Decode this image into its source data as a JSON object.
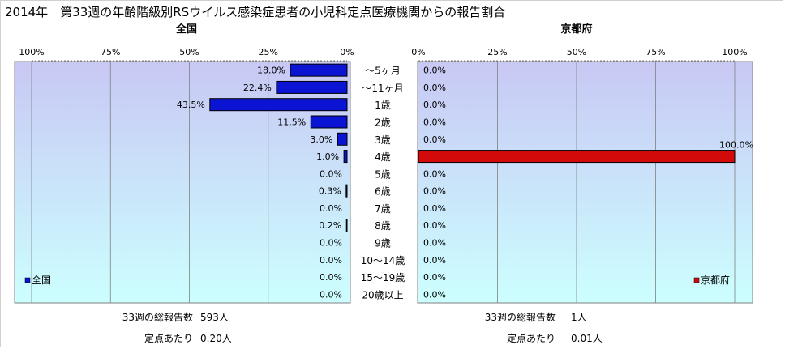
{
  "title": "2014年　第33週の年齢階級別RSウイルス感染症患者の小児科定点医療機関からの報告割合",
  "colors": {
    "plot_bg_top": "#c8c8f4",
    "plot_bg_bottom": "#ccffff",
    "national_bar": "#0a14d2",
    "kyoto_bar": "#d20a0a",
    "grid": "#808080"
  },
  "chart_data": [
    {
      "type": "bar",
      "orientation": "horizontal",
      "direction": "right-to-left",
      "title": "全国",
      "legend": "全国",
      "legend_position": "bottom-left",
      "xlim": [
        0,
        100
      ],
      "tick_labels": [
        "100%",
        "75%",
        "50%",
        "25%",
        "0%"
      ],
      "categories": [
        "～5ヶ月",
        "～11ヶ月",
        "1歳",
        "2歳",
        "3歳",
        "4歳",
        "5歳",
        "6歳",
        "7歳",
        "8歳",
        "9歳",
        "10～14歳",
        "15～19歳",
        "20歳以上"
      ],
      "values": [
        18.0,
        22.4,
        43.5,
        11.5,
        3.0,
        1.0,
        0.0,
        0.3,
        0.0,
        0.2,
        0.0,
        0.0,
        0.0,
        0.0
      ],
      "data_labels": [
        "18.0%",
        "22.4%",
        "43.5%",
        "11.5%",
        "3.0%",
        "1.0%",
        "0.0%",
        "0.3%",
        "0.0%",
        "0.2%",
        "0.0%",
        "0.0%",
        "0.0%",
        "0.0%"
      ],
      "grid": true
    },
    {
      "type": "bar",
      "orientation": "horizontal",
      "direction": "left-to-right",
      "title": "京都府",
      "legend": "京都府",
      "legend_position": "bottom-right",
      "xlim": [
        0,
        100
      ],
      "tick_labels": [
        "0%",
        "25%",
        "50%",
        "75%",
        "100%"
      ],
      "categories": [
        "～5ヶ月",
        "～11ヶ月",
        "1歳",
        "2歳",
        "3歳",
        "4歳",
        "5歳",
        "6歳",
        "7歳",
        "8歳",
        "9歳",
        "10～14歳",
        "15～19歳",
        "20歳以上"
      ],
      "values": [
        0.0,
        0.0,
        0.0,
        0.0,
        0.0,
        100.0,
        0.0,
        0.0,
        0.0,
        0.0,
        0.0,
        0.0,
        0.0,
        0.0
      ],
      "data_labels": [
        "0.0%",
        "0.0%",
        "0.0%",
        "0.0%",
        "0.0%",
        "100.0%",
        "0.0%",
        "0.0%",
        "0.0%",
        "0.0%",
        "0.0%",
        "0.0%",
        "0.0%",
        "0.0%"
      ],
      "grid": true
    }
  ],
  "footer": {
    "national": {
      "total_label": "33週の総報告数",
      "total_value": "593人",
      "per_site_label": "定点あたり",
      "per_site_value": "0.20人"
    },
    "kyoto": {
      "total_label": "33週の総報告数",
      "total_value": "1人",
      "per_site_label": "定点あたり",
      "per_site_value": "0.01人"
    }
  }
}
